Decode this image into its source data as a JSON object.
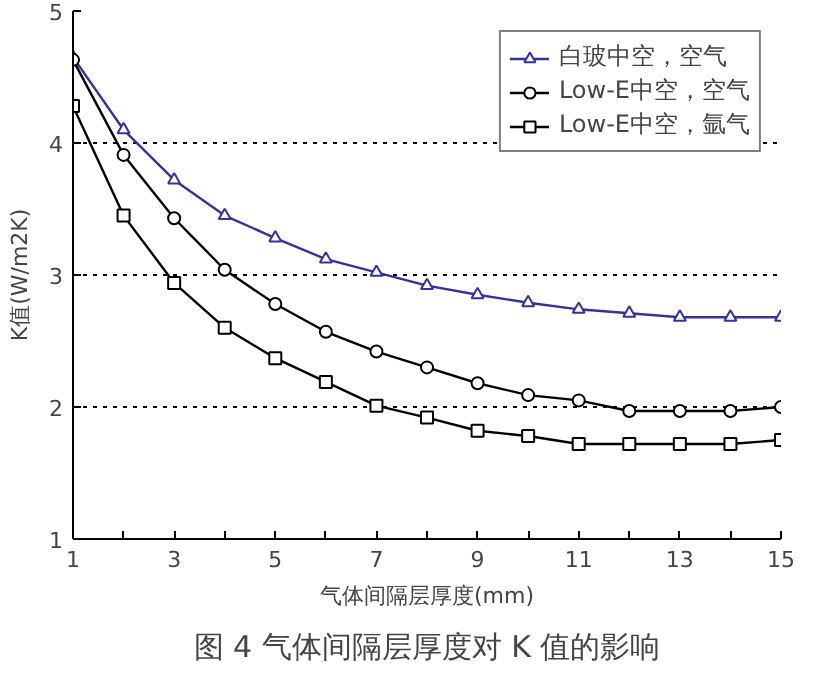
{
  "chart_data": {
    "type": "line",
    "title": "图 4 气体间隔层厚度对 K 值的影响",
    "xlabel": "气体间隔层厚度(mm)",
    "ylabel": "K值(W/m2K)",
    "x": [
      1,
      2,
      3,
      4,
      5,
      6,
      7,
      8,
      9,
      10,
      11,
      12,
      13,
      14,
      15
    ],
    "series": [
      {
        "name": "白玻中空，空气",
        "color": "#333399",
        "marker": "triangle",
        "values": [
          4.65,
          4.1,
          3.72,
          3.45,
          3.28,
          3.12,
          3.02,
          2.92,
          2.85,
          2.79,
          2.74,
          2.71,
          2.68,
          2.68,
          2.68
        ]
      },
      {
        "name": "Low-E中空，空气",
        "color": "#000000",
        "marker": "circle",
        "values": [
          4.63,
          3.91,
          3.43,
          3.04,
          2.78,
          2.57,
          2.42,
          2.3,
          2.18,
          2.09,
          2.05,
          1.97,
          1.97,
          1.97,
          2.0
        ]
      },
      {
        "name": "Low-E中空，氩气",
        "color": "#000000",
        "marker": "square",
        "values": [
          4.28,
          3.45,
          2.94,
          2.6,
          2.37,
          2.19,
          2.01,
          1.92,
          1.82,
          1.78,
          1.72,
          1.72,
          1.72,
          1.72,
          1.75
        ]
      }
    ],
    "xlim": [
      1,
      15
    ],
    "ylim": [
      1,
      5
    ],
    "xticks": [
      1,
      {
        "value": 2,
        "label": null
      },
      3,
      {
        "value": 4,
        "label": null
      },
      5,
      {
        "value": 6,
        "label": null
      },
      7,
      {
        "value": 8,
        "label": null
      },
      9,
      {
        "value": 10,
        "label": null
      },
      11,
      {
        "value": 12,
        "label": null
      },
      13,
      {
        "value": 14,
        "label": null
      },
      15
    ],
    "yticks": [
      1,
      2,
      3,
      4,
      5
    ],
    "grid": "y",
    "legend": "top right",
    "line_style": "solid"
  }
}
